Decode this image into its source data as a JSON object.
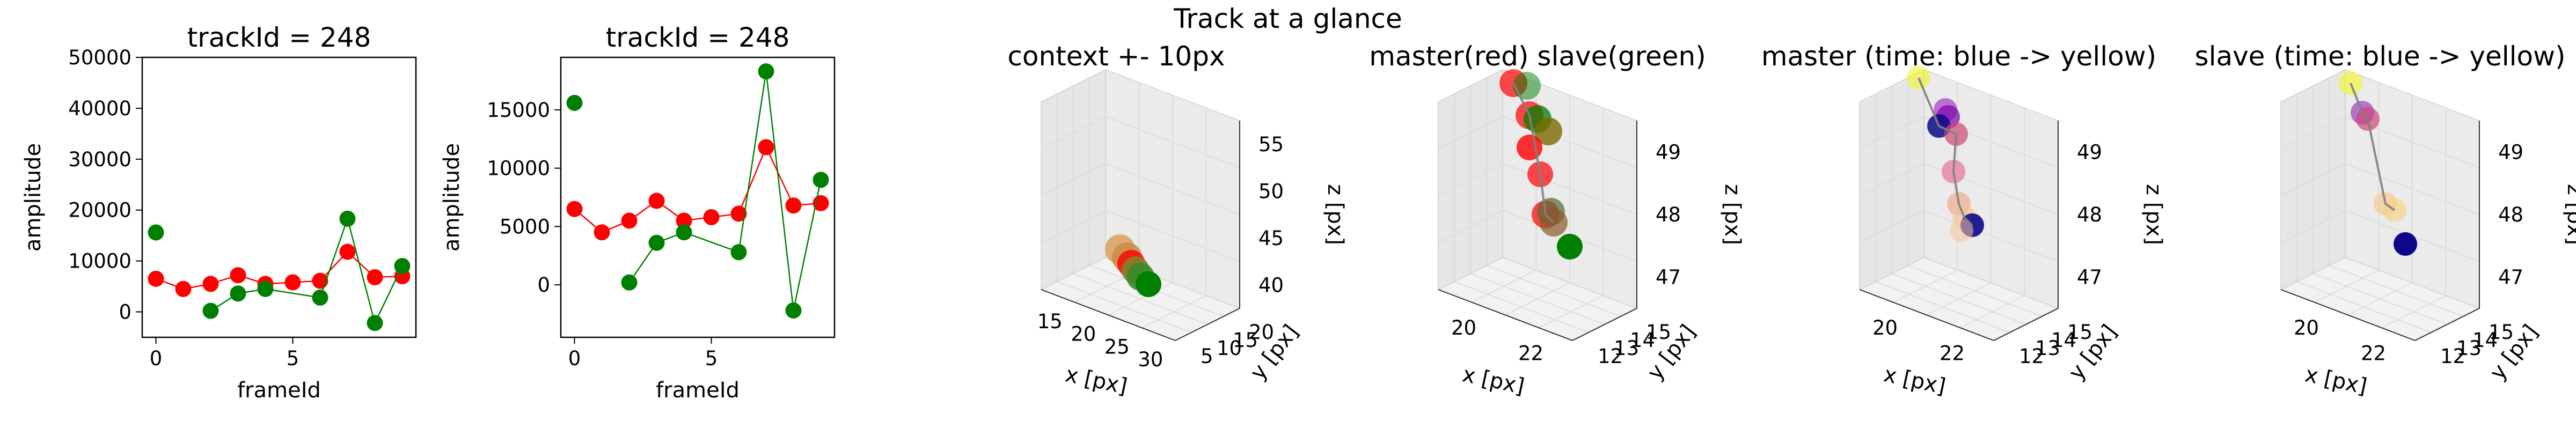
{
  "page": {
    "suptitle": "Track at a glance"
  },
  "chart_data": [
    {
      "type": "scatter",
      "title": "trackId = 248",
      "xlabel": "frameId",
      "ylabel": "amplitude",
      "xlim": [
        -0.5,
        9.5
      ],
      "ylim": [
        -5000,
        50000
      ],
      "xticks": [
        0,
        5
      ],
      "yticks": [
        0,
        10000,
        20000,
        30000,
        40000,
        50000
      ],
      "grid": false,
      "series": [
        {
          "color": "#ff0000",
          "x": [
            0,
            1,
            2,
            3,
            4,
            5,
            6,
            7,
            8,
            9
          ],
          "y": [
            6500,
            4500,
            5500,
            7200,
            5500,
            5800,
            6100,
            11800,
            6800,
            7000
          ],
          "connected": true
        },
        {
          "color": "#008000",
          "x": [
            0,
            2,
            3,
            4,
            6,
            7,
            8,
            9
          ],
          "y": [
            15600,
            200,
            3600,
            4500,
            2800,
            18300,
            -2200,
            9000
          ],
          "connected": "partial"
        }
      ]
    },
    {
      "type": "scatter",
      "title": "trackId = 248",
      "xlabel": "frameId",
      "ylabel": "amplitude",
      "xlim": [
        -0.5,
        9.5
      ],
      "ylim": [
        -4500,
        19500
      ],
      "xticks": [
        0,
        5
      ],
      "yticks": [
        0,
        5000,
        10000,
        15000
      ],
      "grid": false,
      "series": [
        {
          "color": "#ff0000",
          "x": [
            0,
            1,
            2,
            3,
            4,
            5,
            6,
            7,
            8,
            9
          ],
          "y": [
            6500,
            4500,
            5500,
            7200,
            5500,
            5800,
            6100,
            11800,
            6800,
            7000
          ],
          "connected": true
        },
        {
          "color": "#008000",
          "x": [
            0,
            2,
            3,
            4,
            6,
            7,
            8,
            9
          ],
          "y": [
            15600,
            200,
            3600,
            4500,
            2800,
            18300,
            -2200,
            9000
          ],
          "connected": "partial"
        }
      ]
    },
    {
      "type": "scatter3d",
      "title": "context +- 10px",
      "xlabel": "x [px]",
      "ylabel": "y [px]",
      "zlabel": "z [px]",
      "xticks": [
        15,
        20,
        25,
        30
      ],
      "yticks": [
        5,
        10,
        15,
        20
      ],
      "zticks": [
        40,
        45,
        50,
        55
      ],
      "points": [
        {
          "color": "#d9a05c"
        },
        {
          "color": "#c88a4a"
        },
        {
          "color": "#ff0000"
        },
        {
          "color": "#7a8a2a"
        },
        {
          "color": "#3a8a2a"
        },
        {
          "color": "#008000"
        }
      ]
    },
    {
      "type": "scatter3d",
      "title": "master(red) slave(green)",
      "xlabel": "x [px]",
      "ylabel": "y [px]",
      "zlabel": "z [px]",
      "xticks": [
        20,
        22
      ],
      "yticks": [
        12,
        13,
        14,
        15
      ],
      "zticks": [
        47,
        48,
        49
      ],
      "series": [
        {
          "name": "master",
          "color": "#ff0000"
        },
        {
          "name": "slave",
          "color": "#008000"
        }
      ]
    },
    {
      "type": "scatter3d",
      "title": "master (time: blue -> yellow)",
      "xlabel": "x [px]",
      "ylabel": "y [px]",
      "zlabel": "z [px]",
      "xticks": [
        20,
        22
      ],
      "yticks": [
        12,
        13,
        14,
        15
      ],
      "zticks": [
        47,
        48,
        49
      ],
      "colormap": [
        "#0d0887",
        "#7e03a8",
        "#cc4778",
        "#f89540",
        "#f0f921"
      ]
    },
    {
      "type": "scatter3d",
      "title": "slave (time: blue -> yellow)",
      "xlabel": "x [px]",
      "ylabel": "y [px]",
      "zlabel": "z [px]",
      "xticks": [
        20,
        22
      ],
      "yticks": [
        12,
        13,
        14,
        15
      ],
      "zticks": [
        47,
        48,
        49
      ],
      "colormap": [
        "#0d0887",
        "#7e03a8",
        "#cc4778",
        "#f89540",
        "#f0f921"
      ]
    }
  ]
}
